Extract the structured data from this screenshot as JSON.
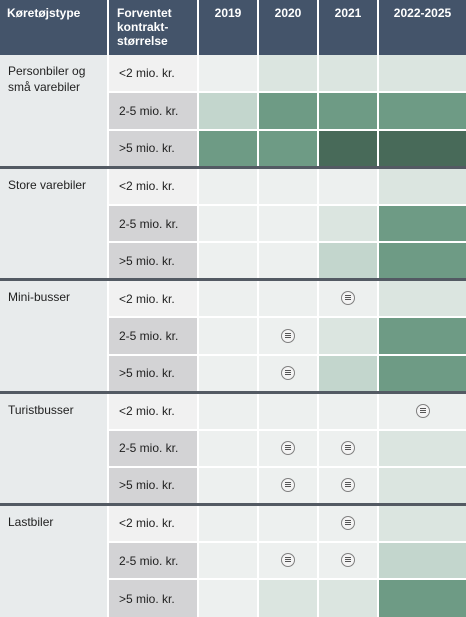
{
  "header": {
    "vehicle_type": "Køretøjstype",
    "contract_size": "Forventet kontrakt-størrelse",
    "years": [
      "2019",
      "2020",
      "2021",
      "2022-2025"
    ]
  },
  "legend_levels": {
    "l0": "#edf0ef",
    "l1": "#dbe5e0",
    "l2": "#c3d6cd",
    "l3": "#6e9b85",
    "l4": "#486a59"
  },
  "groups": [
    {
      "label": "Personbiler og små varebiler",
      "rows": [
        {
          "size": "<2 mio. kr.",
          "cells": [
            {
              "level": 0,
              "mark": false
            },
            {
              "level": 1,
              "mark": false
            },
            {
              "level": 1,
              "mark": false
            },
            {
              "level": 1,
              "mark": false
            }
          ]
        },
        {
          "size": "2-5 mio. kr.",
          "cells": [
            {
              "level": 2,
              "mark": false
            },
            {
              "level": 3,
              "mark": false
            },
            {
              "level": 3,
              "mark": false
            },
            {
              "level": 3,
              "mark": false
            }
          ]
        },
        {
          "size": ">5 mio. kr.",
          "cells": [
            {
              "level": 3,
              "mark": false
            },
            {
              "level": 3,
              "mark": false
            },
            {
              "level": 4,
              "mark": false
            },
            {
              "level": 4,
              "mark": false
            }
          ]
        }
      ]
    },
    {
      "label": "Store varebiler",
      "rows": [
        {
          "size": "<2 mio. kr.",
          "cells": [
            {
              "level": 0,
              "mark": false
            },
            {
              "level": 0,
              "mark": false
            },
            {
              "level": 0,
              "mark": false
            },
            {
              "level": 1,
              "mark": false
            }
          ]
        },
        {
          "size": "2-5 mio. kr.",
          "cells": [
            {
              "level": 0,
              "mark": false
            },
            {
              "level": 0,
              "mark": false
            },
            {
              "level": 1,
              "mark": false
            },
            {
              "level": 3,
              "mark": false
            }
          ]
        },
        {
          "size": ">5 mio. kr.",
          "cells": [
            {
              "level": 0,
              "mark": false
            },
            {
              "level": 0,
              "mark": false
            },
            {
              "level": 2,
              "mark": false
            },
            {
              "level": 3,
              "mark": false
            }
          ]
        }
      ]
    },
    {
      "label": "Mini-busser",
      "rows": [
        {
          "size": "<2 mio. kr.",
          "cells": [
            {
              "level": 0,
              "mark": false
            },
            {
              "level": 0,
              "mark": false
            },
            {
              "level": 0,
              "mark": true
            },
            {
              "level": 1,
              "mark": false
            }
          ]
        },
        {
          "size": "2-5 mio. kr.",
          "cells": [
            {
              "level": 0,
              "mark": false
            },
            {
              "level": 0,
              "mark": true
            },
            {
              "level": 1,
              "mark": false
            },
            {
              "level": 3,
              "mark": false
            }
          ]
        },
        {
          "size": ">5 mio. kr.",
          "cells": [
            {
              "level": 0,
              "mark": false
            },
            {
              "level": 0,
              "mark": true
            },
            {
              "level": 2,
              "mark": false
            },
            {
              "level": 3,
              "mark": false
            }
          ]
        }
      ]
    },
    {
      "label": "Turistbusser",
      "rows": [
        {
          "size": "<2 mio. kr.",
          "cells": [
            {
              "level": 0,
              "mark": false
            },
            {
              "level": 0,
              "mark": false
            },
            {
              "level": 0,
              "mark": false
            },
            {
              "level": 0,
              "mark": true
            }
          ]
        },
        {
          "size": "2-5 mio. kr.",
          "cells": [
            {
              "level": 0,
              "mark": false
            },
            {
              "level": 0,
              "mark": true
            },
            {
              "level": 0,
              "mark": true
            },
            {
              "level": 1,
              "mark": false
            }
          ]
        },
        {
          "size": ">5 mio. kr.",
          "cells": [
            {
              "level": 0,
              "mark": false
            },
            {
              "level": 0,
              "mark": true
            },
            {
              "level": 0,
              "mark": true
            },
            {
              "level": 1,
              "mark": false
            }
          ]
        }
      ]
    },
    {
      "label": "Lastbiler",
      "rows": [
        {
          "size": "<2 mio. kr.",
          "cells": [
            {
              "level": 0,
              "mark": false
            },
            {
              "level": 0,
              "mark": false
            },
            {
              "level": 0,
              "mark": true
            },
            {
              "level": 1,
              "mark": false
            }
          ]
        },
        {
          "size": "2-5 mio. kr.",
          "cells": [
            {
              "level": 0,
              "mark": false
            },
            {
              "level": 0,
              "mark": true
            },
            {
              "level": 0,
              "mark": true
            },
            {
              "level": 2,
              "mark": false
            }
          ]
        },
        {
          "size": ">5 mio. kr.",
          "cells": [
            {
              "level": 0,
              "mark": false
            },
            {
              "level": 1,
              "mark": false
            },
            {
              "level": 1,
              "mark": false
            },
            {
              "level": 3,
              "mark": false
            }
          ]
        }
      ]
    }
  ]
}
